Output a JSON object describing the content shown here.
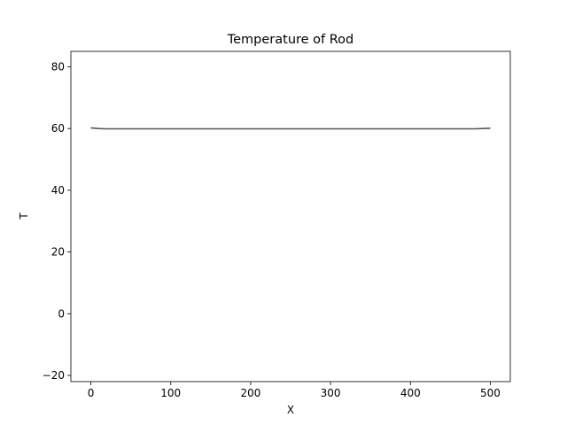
{
  "chart_data": {
    "type": "line",
    "title": "Temperature of Rod",
    "xlabel": "X",
    "ylabel": "T",
    "xlim": [
      -25,
      525
    ],
    "ylim": [
      -22,
      85
    ],
    "xticks": [
      0,
      100,
      200,
      300,
      400,
      500
    ],
    "yticks": [
      -20,
      0,
      20,
      40,
      60,
      80
    ],
    "grid": false,
    "series": [
      {
        "color": "#555555",
        "x": [
          0,
          10,
          20,
          50,
          100,
          150,
          200,
          250,
          300,
          350,
          400,
          450,
          480,
          490,
          500
        ],
        "values": [
          60.2,
          60.0,
          59.9,
          59.9,
          59.9,
          59.9,
          59.9,
          59.9,
          59.9,
          59.9,
          59.9,
          59.9,
          59.9,
          60.0,
          60.1
        ]
      }
    ]
  }
}
